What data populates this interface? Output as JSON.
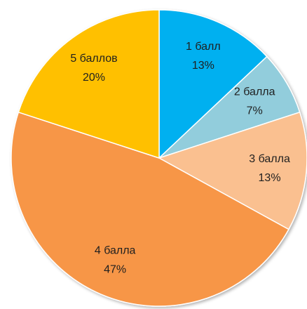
{
  "chart_data": {
    "type": "pie",
    "categories": [
      "1 балл",
      "2 балла",
      "3 балла",
      "4 балла",
      "5 баллов"
    ],
    "values": [
      13,
      7,
      13,
      47,
      20
    ],
    "value_labels": [
      "13%",
      "7%",
      "13%",
      "47%",
      "20%"
    ],
    "colors": [
      "#00b0f0",
      "#92cddc",
      "#fac090",
      "#f79646",
      "#ffc000"
    ]
  }
}
